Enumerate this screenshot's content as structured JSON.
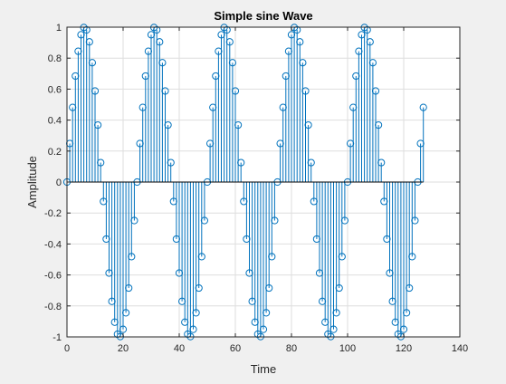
{
  "chart_data": {
    "type": "stem",
    "title": "Simple sine Wave",
    "xlabel": "Time",
    "ylabel": "Amplitude",
    "xlim": [
      0,
      140
    ],
    "ylim": [
      -1,
      1
    ],
    "xticks": [
      0,
      20,
      40,
      60,
      80,
      100,
      120,
      140
    ],
    "yticks": [
      -1,
      -0.8,
      -0.6,
      -0.4,
      -0.2,
      0,
      0.2,
      0.4,
      0.6,
      0.8,
      1
    ],
    "grid": true,
    "series": [
      {
        "x_start": 0,
        "x_end": 127,
        "x_step": 1,
        "function": "sin(2*pi*0.04*n)",
        "frequency": 0.04,
        "amplitude": 1,
        "color": "#0072bd",
        "marker": "circle-open"
      }
    ]
  },
  "colors": {
    "background": "#f0f0f0",
    "plot_area": "#ffffff",
    "grid": "#dedede",
    "axis": "#262626",
    "stem": "#0072bd"
  }
}
